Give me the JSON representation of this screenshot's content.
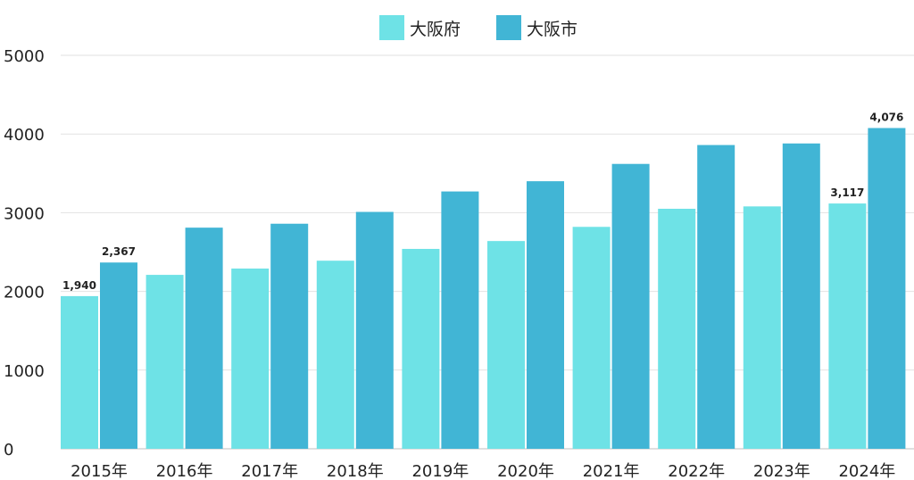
{
  "chart_data": {
    "type": "bar",
    "categories": [
      "2015年",
      "2016年",
      "2017年",
      "2018年",
      "2019年",
      "2020年",
      "2021年",
      "2022年",
      "2023年",
      "2024年"
    ],
    "series": [
      {
        "name": "大阪府",
        "color": "#6ee2e6",
        "values": [
          1940,
          2210,
          2290,
          2390,
          2540,
          2640,
          2820,
          3050,
          3080,
          3117
        ]
      },
      {
        "name": "大阪市",
        "color": "#41b5d5",
        "values": [
          2367,
          2810,
          2860,
          3010,
          3270,
          3400,
          3620,
          3860,
          3880,
          4076
        ]
      }
    ],
    "data_labels": [
      {
        "series": 0,
        "index": 0,
        "text": "1,940"
      },
      {
        "series": 1,
        "index": 0,
        "text": "2,367"
      },
      {
        "series": 0,
        "index": 9,
        "text": "3,117"
      },
      {
        "series": 1,
        "index": 9,
        "text": "4,076"
      }
    ],
    "yticks": [
      "0",
      "1000",
      "2000",
      "3000",
      "4000",
      "5000"
    ],
    "ylim": [
      0,
      5000
    ],
    "grid": true,
    "legend": "top-center",
    "title": "",
    "xlabel": "",
    "ylabel": ""
  }
}
